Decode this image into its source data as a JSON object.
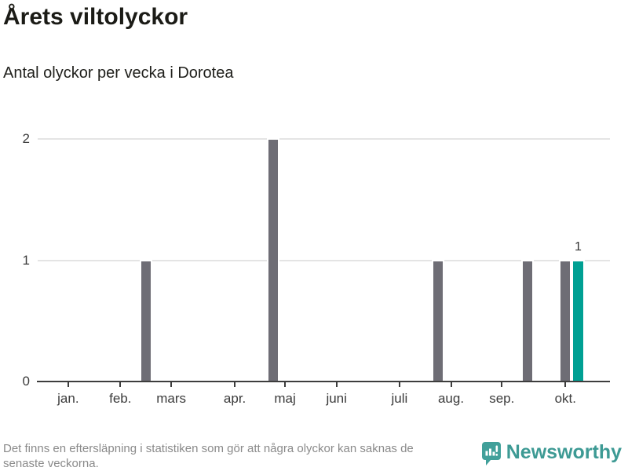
{
  "header": {
    "title": "Årets viltolyckor",
    "subtitle": "Antal olyckor per vecka i Dorotea"
  },
  "footer": {
    "note_lines": [
      "Det finns en eftersläpning i statistiken som gör att några olyckor kan saknas de",
      "senaste veckorna."
    ],
    "brand": "Newsworthy",
    "brand_color": "#3d9a94"
  },
  "chart_data": {
    "type": "bar",
    "title": "Årets viltolyckor",
    "subtitle": "Antal olyckor per vecka i Dorotea",
    "x_unit": "vecka",
    "n_slots": 45,
    "ylim": [
      0,
      2
    ],
    "yticks": [
      0,
      1,
      2
    ],
    "grid": "horizontal",
    "legend": "none",
    "months": [
      {
        "label": "jan.",
        "pos": 2.4
      },
      {
        "label": "feb.",
        "pos": 6.5
      },
      {
        "label": "mars",
        "pos": 10.5
      },
      {
        "label": "apr.",
        "pos": 15.5
      },
      {
        "label": "maj",
        "pos": 19.45
      },
      {
        "label": "juni",
        "pos": 23.5
      },
      {
        "label": "juli",
        "pos": 28.45
      },
      {
        "label": "aug.",
        "pos": 32.5
      },
      {
        "label": "sep.",
        "pos": 36.5
      },
      {
        "label": "okt.",
        "pos": 41.5
      }
    ],
    "bars": [
      {
        "week": 9,
        "pos": 8.5,
        "value": 1,
        "highlight": false,
        "label": ""
      },
      {
        "week": 19,
        "pos": 18.5,
        "value": 2,
        "highlight": false,
        "label": ""
      },
      {
        "week": 32,
        "pos": 31.5,
        "value": 1,
        "highlight": false,
        "label": ""
      },
      {
        "week": 39,
        "pos": 38.5,
        "value": 1,
        "highlight": false,
        "label": ""
      },
      {
        "week": 42,
        "pos": 41.5,
        "value": 1,
        "highlight": false,
        "label": ""
      },
      {
        "week": 43,
        "pos": 42.5,
        "value": 1,
        "highlight": true,
        "label": "1"
      }
    ],
    "colors": {
      "bar": "#6e6d75",
      "highlight": "#00a093",
      "grid": "#e4e4e4",
      "axis": "#3d3d3d",
      "tick_text": "#3b3b3b"
    }
  }
}
